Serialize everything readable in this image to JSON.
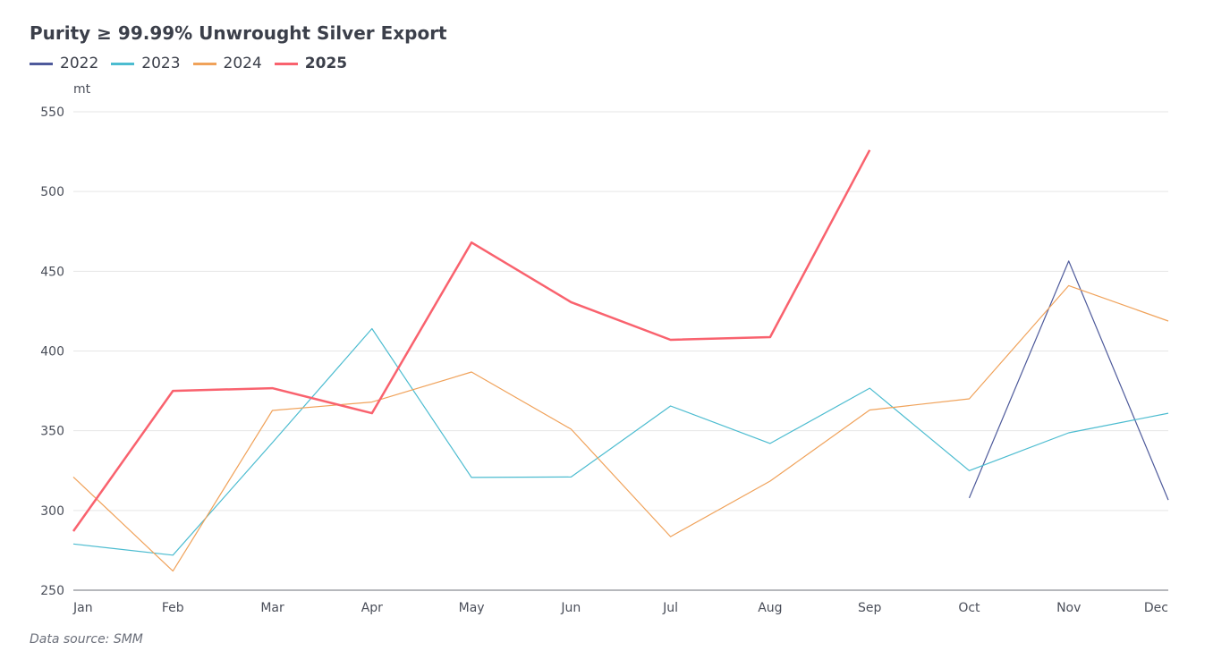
{
  "chart_data": {
    "type": "line",
    "title": "Purity ≥ 99.99% Unwrought Silver Export",
    "ylabel": "mt",
    "xlabel": "",
    "categories": [
      "Jan",
      "Feb",
      "Mar",
      "Apr",
      "May",
      "Jun",
      "Jul",
      "Aug",
      "Sep",
      "Oct",
      "Nov",
      "Dec"
    ],
    "ylim": [
      250,
      550
    ],
    "yticks": [
      250,
      300,
      350,
      400,
      450,
      500,
      550
    ],
    "grid": true,
    "legend_position": "top-left",
    "series": [
      {
        "name": "2022",
        "color": "#4e5a9b",
        "width": 1.2,
        "values": [
          null,
          null,
          null,
          null,
          null,
          null,
          null,
          null,
          null,
          307.8,
          456.4,
          306.6
        ]
      },
      {
        "name": "2023",
        "color": "#4cbcd0",
        "width": 1.2,
        "values": [
          279,
          272,
          342.5,
          414,
          320.7,
          321,
          365.5,
          342,
          376.7,
          325,
          348.7,
          361
        ]
      },
      {
        "name": "2024",
        "color": "#f0a25a",
        "width": 1.2,
        "values": [
          321,
          262,
          362.7,
          368,
          386.8,
          351,
          283.6,
          318.4,
          363,
          370,
          441,
          418.8
        ]
      },
      {
        "name": "2025",
        "color": "#f9626e",
        "width": 2.5,
        "values": [
          287,
          375,
          376.7,
          361,
          468,
          430.6,
          407,
          408.7,
          526,
          null,
          null,
          null
        ]
      }
    ],
    "source": "Data source:  SMM"
  }
}
